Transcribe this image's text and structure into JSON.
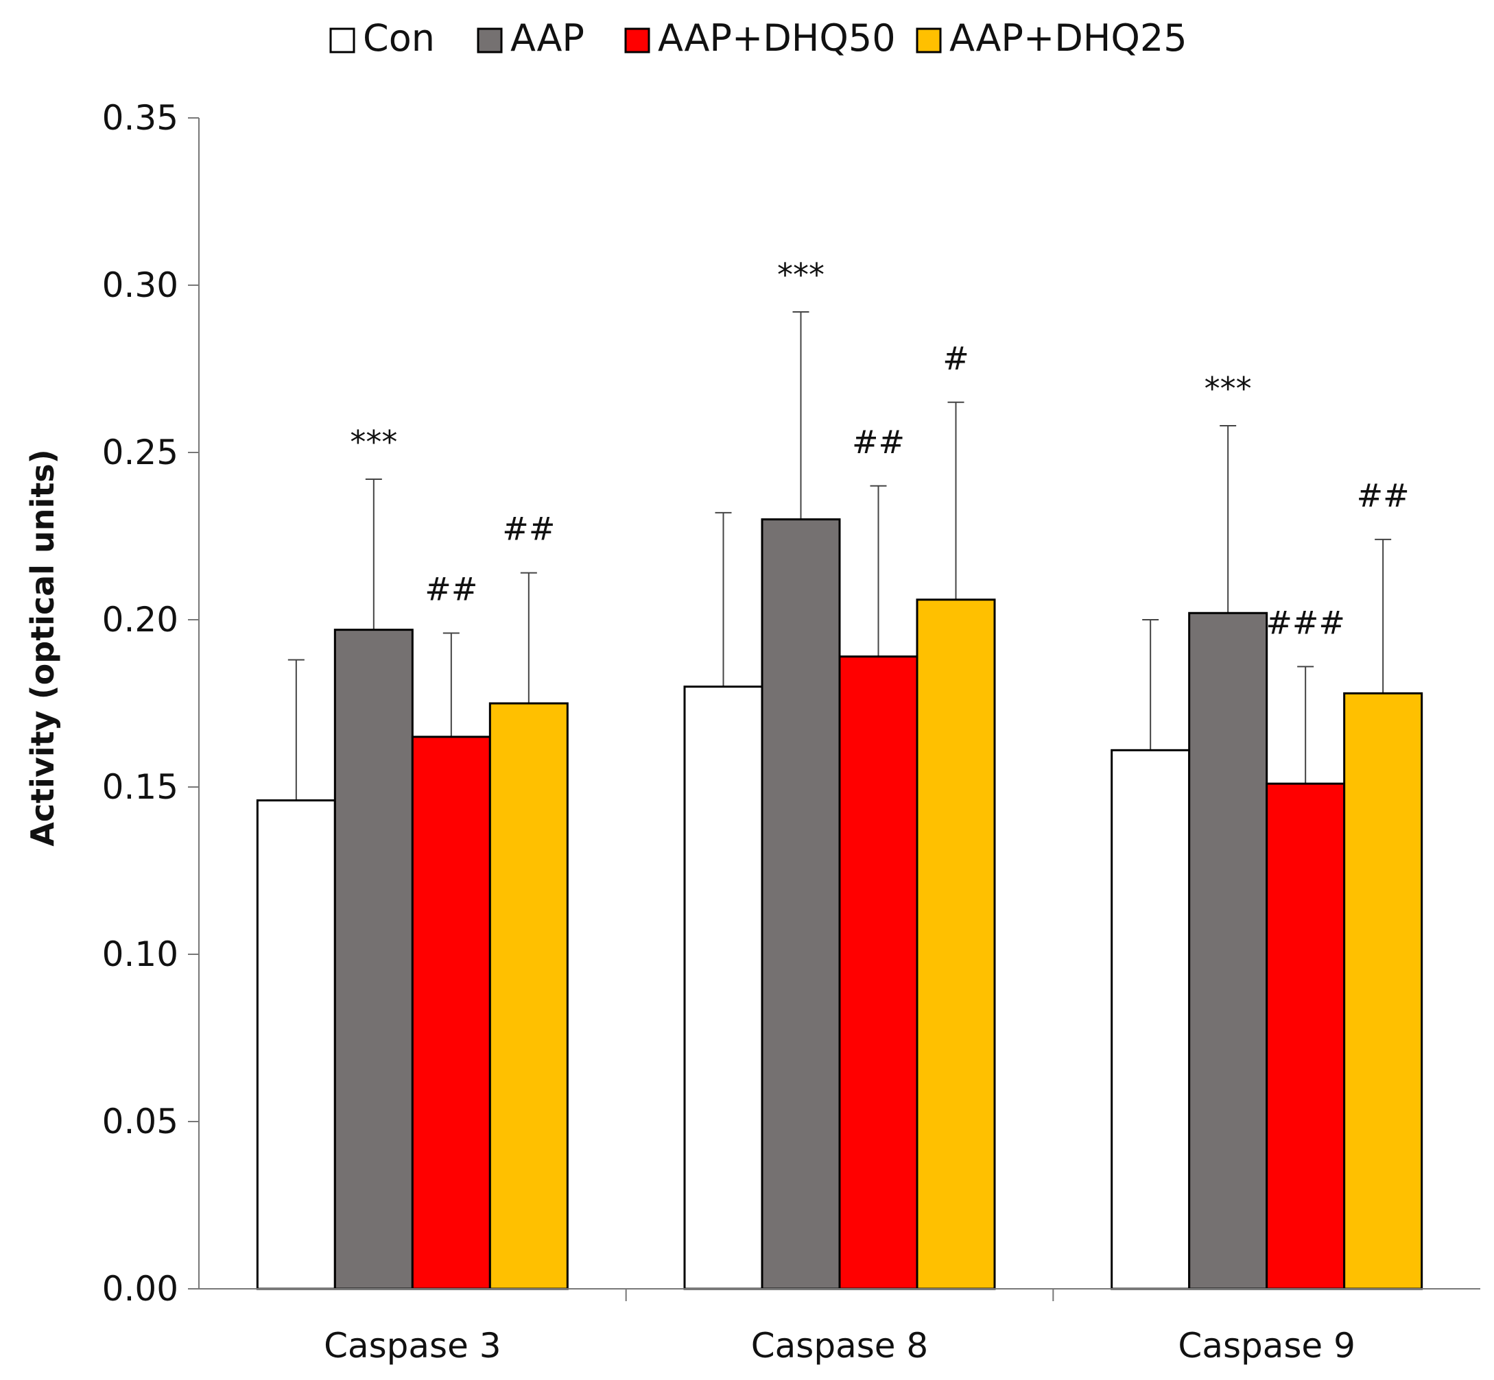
{
  "chart_data": {
    "type": "bar",
    "title": "",
    "xlabel": "",
    "ylabel": "Activity (optical units)",
    "ylim": [
      0,
      0.35
    ],
    "yticks": [
      "0.00",
      "0.05",
      "0.10",
      "0.15",
      "0.20",
      "0.25",
      "0.30",
      "0.35"
    ],
    "ytick_values": [
      0,
      0.05,
      0.1,
      0.15,
      0.2,
      0.25,
      0.3,
      0.35
    ],
    "grid": false,
    "legend_position": "top-center",
    "categories": [
      "Caspase 3",
      "Caspase 8",
      "Caspase 9"
    ],
    "series": [
      {
        "name": "Con",
        "color": "#ffffff",
        "values": [
          0.146,
          0.18,
          0.161
        ],
        "errors": [
          0.042,
          0.052,
          0.039
        ],
        "annotations": [
          "",
          "",
          ""
        ]
      },
      {
        "name": "AAP",
        "color": "#757171",
        "values": [
          0.197,
          0.23,
          0.202
        ],
        "errors": [
          0.045,
          0.062,
          0.056
        ],
        "annotations": [
          "***",
          "***",
          "***"
        ]
      },
      {
        "name": "AAP+DHQ50",
        "color": "#ff0000",
        "values": [
          0.165,
          0.189,
          0.151
        ],
        "errors": [
          0.031,
          0.051,
          0.035
        ],
        "annotations": [
          "##",
          "##",
          "###"
        ]
      },
      {
        "name": "AAP+DHQ25",
        "color": "#ffc000",
        "values": [
          0.175,
          0.206,
          0.178
        ],
        "errors": [
          0.039,
          0.059,
          0.046
        ],
        "annotations": [
          "##",
          "#",
          "##"
        ]
      }
    ]
  }
}
